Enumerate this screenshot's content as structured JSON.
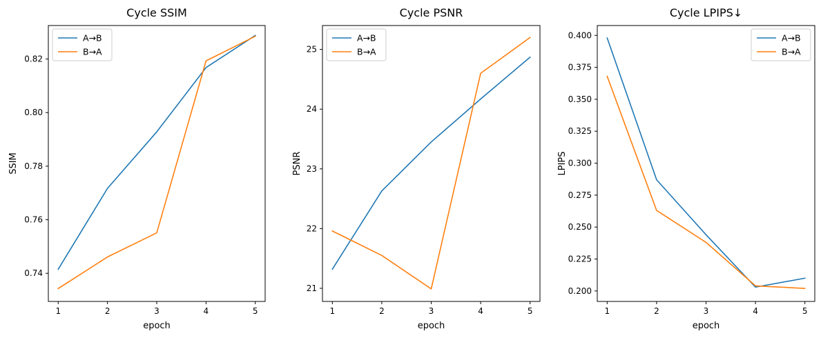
{
  "chart_data": [
    {
      "type": "line",
      "title": "Cycle SSIM",
      "xlabel": "epoch",
      "ylabel": "SSIM",
      "x": [
        1,
        2,
        3,
        4,
        5
      ],
      "xlim": [
        0.8,
        5.2
      ],
      "ylim": [
        0.7295,
        0.8325
      ],
      "xticks": [
        1,
        2,
        3,
        4,
        5
      ],
      "yticks": [
        0.74,
        0.76,
        0.78,
        0.8,
        0.82
      ],
      "ytick_labels": [
        "0.74",
        "0.76",
        "0.78",
        "0.80",
        "0.82"
      ],
      "legend_position": "top-left",
      "grid": false,
      "series": [
        {
          "name": "A→B",
          "color": "#1f77b4",
          "values": [
            0.7415,
            0.7717,
            0.7928,
            0.8168,
            0.8288
          ]
        },
        {
          "name": "B→A",
          "color": "#ff7f0e",
          "values": [
            0.7343,
            0.7461,
            0.7551,
            0.8193,
            0.8285
          ]
        }
      ]
    },
    {
      "type": "line",
      "title": "Cycle PSNR",
      "xlabel": "epoch",
      "ylabel": "PSNR",
      "x": [
        1,
        2,
        3,
        4,
        5
      ],
      "xlim": [
        0.8,
        5.2
      ],
      "ylim": [
        20.78,
        25.4
      ],
      "xticks": [
        1,
        2,
        3,
        4,
        5
      ],
      "yticks": [
        21,
        22,
        23,
        24,
        25
      ],
      "ytick_labels": [
        "21",
        "22",
        "23",
        "24",
        "25"
      ],
      "legend_position": "top-left",
      "grid": false,
      "series": [
        {
          "name": "A→B",
          "color": "#1f77b4",
          "values": [
            21.32,
            22.63,
            23.45,
            24.17,
            24.87
          ]
        },
        {
          "name": "B→A",
          "color": "#ff7f0e",
          "values": [
            21.96,
            21.55,
            20.99,
            24.6,
            25.2
          ]
        }
      ]
    },
    {
      "type": "line",
      "title": "Cycle LPIPS↓",
      "xlabel": "epoch",
      "ylabel": "LPIPS",
      "x": [
        1,
        2,
        3,
        4,
        5
      ],
      "xlim": [
        0.8,
        5.2
      ],
      "ylim": [
        0.1918,
        0.4077
      ],
      "xticks": [
        1,
        2,
        3,
        4,
        5
      ],
      "yticks": [
        0.2,
        0.225,
        0.25,
        0.275,
        0.3,
        0.325,
        0.35,
        0.375,
        0.4
      ],
      "ytick_labels": [
        "0.200",
        "0.225",
        "0.250",
        "0.275",
        "0.300",
        "0.325",
        "0.350",
        "0.375",
        "0.400"
      ],
      "legend_position": "top-right",
      "grid": false,
      "series": [
        {
          "name": "A→B",
          "color": "#1f77b4",
          "values": [
            0.398,
            0.287,
            0.244,
            0.203,
            0.21
          ]
        },
        {
          "name": "B→A",
          "color": "#ff7f0e",
          "values": [
            0.368,
            0.263,
            0.238,
            0.204,
            0.202
          ]
        }
      ]
    }
  ]
}
